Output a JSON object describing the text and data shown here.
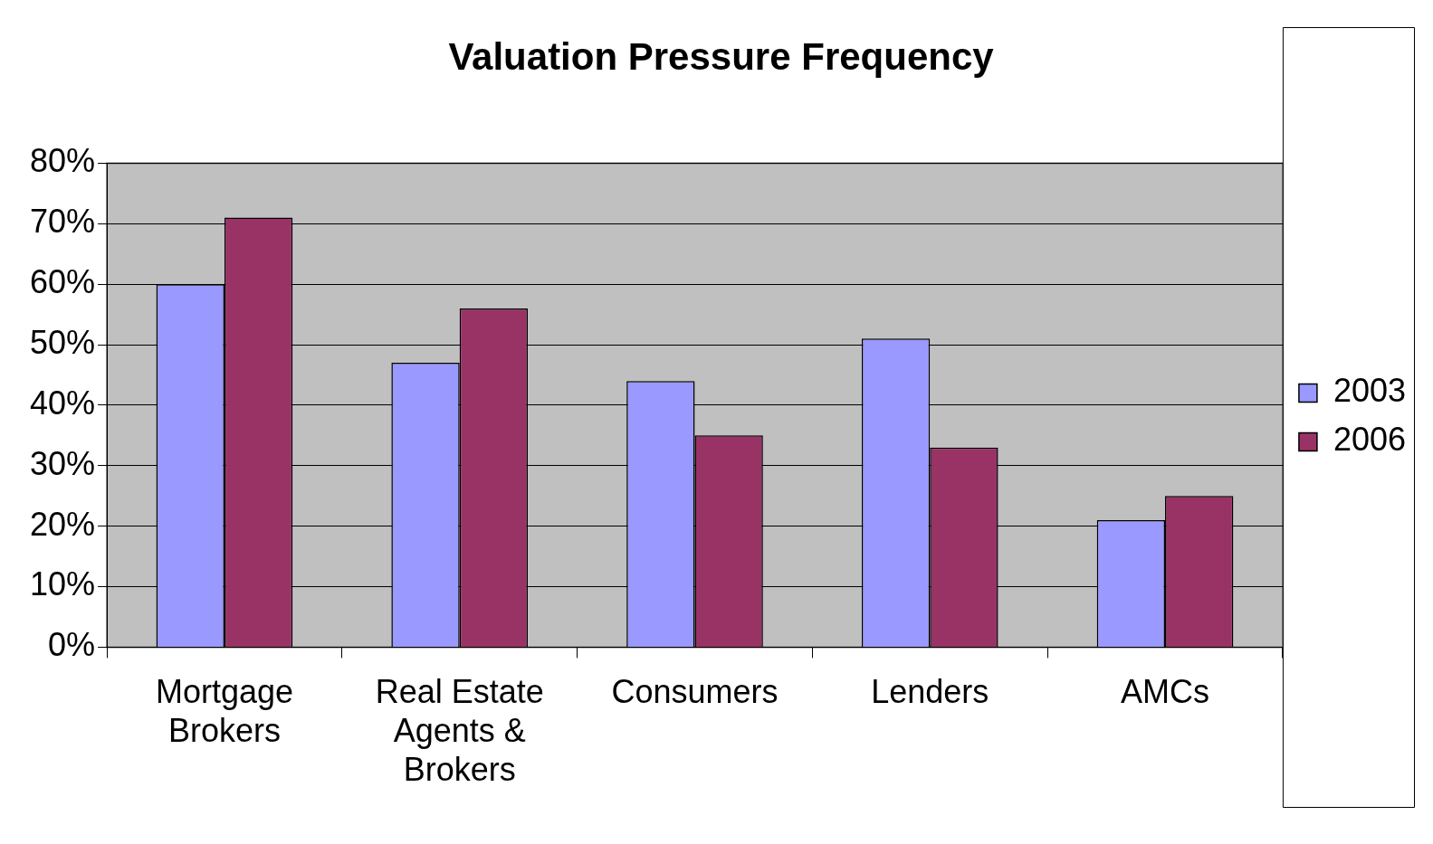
{
  "chart_data": {
    "type": "bar",
    "title": "Valuation Pressure Frequency",
    "categories": [
      "Mortgage Brokers",
      "Real Estate Agents & Brokers",
      "Consumers",
      "Lenders",
      "AMCs"
    ],
    "series": [
      {
        "name": "2003",
        "color": "#9999ff",
        "values": [
          60,
          47,
          44,
          51,
          21
        ]
      },
      {
        "name": "2006",
        "color": "#993366",
        "values": [
          71,
          56,
          35,
          33,
          25
        ]
      }
    ],
    "ylim": [
      0,
      80
    ],
    "yticks": [
      {
        "value": 0,
        "label": "0%"
      },
      {
        "value": 10,
        "label": "10%"
      },
      {
        "value": 20,
        "label": "20%"
      },
      {
        "value": 30,
        "label": "30%"
      },
      {
        "value": 40,
        "label": "40%"
      },
      {
        "value": 50,
        "label": "50%"
      },
      {
        "value": 60,
        "label": "60%"
      },
      {
        "value": 70,
        "label": "70%"
      },
      {
        "value": 80,
        "label": "80%"
      }
    ],
    "grid": "y",
    "legend": "right"
  }
}
